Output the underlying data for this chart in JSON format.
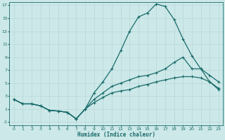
{
  "xlabel": "Humidex (Indice chaleur)",
  "bg_color": "#cce8e8",
  "grid_color": "#aacccc",
  "line_color": "#1a6b6b",
  "xlim": [
    -0.5,
    23.5
  ],
  "ylim": [
    -1.5,
    17.5
  ],
  "xticks": [
    0,
    1,
    2,
    3,
    4,
    5,
    6,
    7,
    8,
    9,
    10,
    11,
    12,
    13,
    14,
    15,
    16,
    17,
    18,
    19,
    20,
    21,
    22,
    23
  ],
  "yticks": [
    -1,
    1,
    3,
    5,
    7,
    9,
    11,
    13,
    15,
    17
  ],
  "line1_x": [
    0,
    1,
    2,
    3,
    4,
    5,
    6,
    7,
    8,
    9,
    10,
    11,
    12,
    13,
    14,
    15,
    16,
    17,
    18,
    19,
    20,
    21,
    22,
    23
  ],
  "line1_y": [
    2.5,
    1.8,
    1.8,
    1.5,
    0.8,
    0.7,
    0.5,
    -0.5,
    1.0,
    3.5,
    5.2,
    7.2,
    10.0,
    13.0,
    15.2,
    15.8,
    17.2,
    16.8,
    14.8,
    11.8,
    9.2,
    7.2,
    5.2,
    4.0
  ],
  "line2_x": [
    0,
    1,
    2,
    3,
    4,
    5,
    6,
    7,
    8,
    9,
    10,
    11,
    12,
    13,
    14,
    15,
    16,
    17,
    18,
    19,
    20,
    21,
    22,
    23
  ],
  "line2_y": [
    2.5,
    1.8,
    1.8,
    1.5,
    0.8,
    0.7,
    0.5,
    -0.5,
    1.0,
    2.5,
    3.5,
    4.5,
    5.0,
    5.5,
    6.0,
    6.2,
    6.6,
    7.2,
    8.2,
    9.0,
    7.2,
    7.2,
    6.2,
    5.2
  ],
  "line3_x": [
    0,
    1,
    2,
    3,
    4,
    5,
    6,
    7,
    8,
    9,
    10,
    11,
    12,
    13,
    14,
    15,
    16,
    17,
    18,
    19,
    20,
    21,
    22,
    23
  ],
  "line3_y": [
    2.5,
    1.8,
    1.8,
    1.5,
    0.8,
    0.7,
    0.5,
    -0.5,
    1.0,
    2.0,
    2.8,
    3.5,
    3.8,
    4.0,
    4.5,
    4.8,
    5.2,
    5.5,
    5.8,
    6.0,
    6.0,
    5.8,
    5.2,
    4.2
  ]
}
